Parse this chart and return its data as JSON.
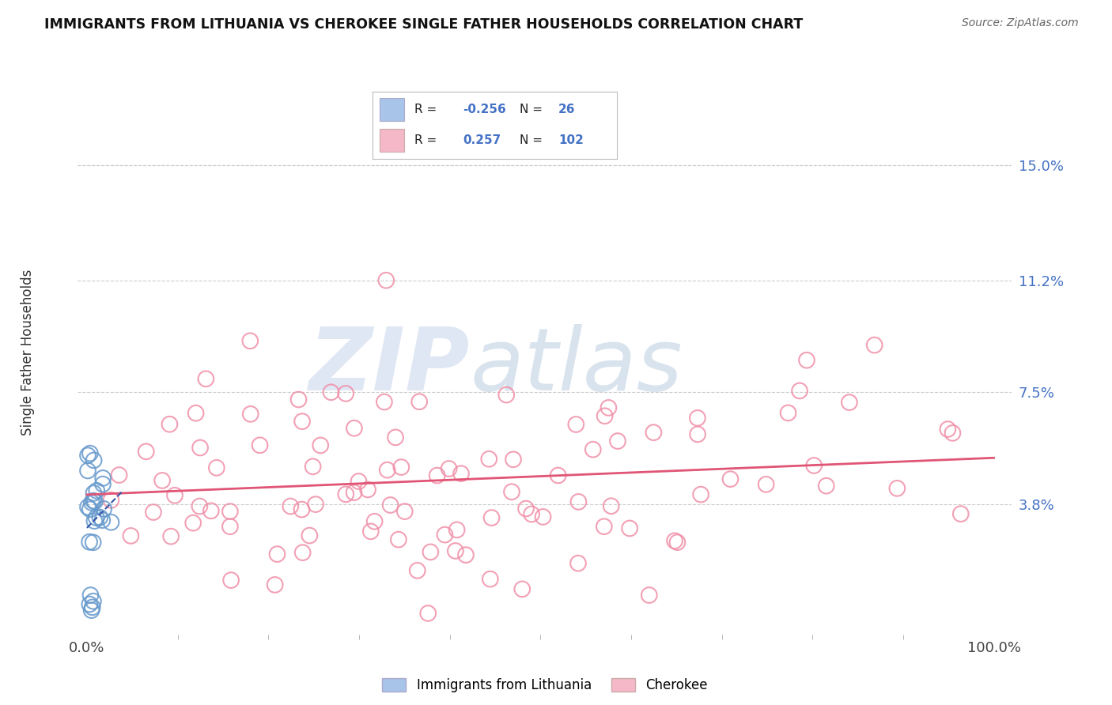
{
  "title": "IMMIGRANTS FROM LITHUANIA VS CHEROKEE SINGLE FATHER HOUSEHOLDS CORRELATION CHART",
  "source_text": "Source: ZipAtlas.com",
  "ylabel": "Single Father Households",
  "legend_entries": [
    {
      "label": "Immigrants from Lithuania",
      "R_val": "-0.256",
      "N_val": "26",
      "color": "#a8c4e8",
      "R_color": "#4472c4",
      "N_color": "#4472c4"
    },
    {
      "label": "Cherokee",
      "R_val": "0.257",
      "N_val": "102",
      "color": "#f4b8c8",
      "R_color": "#4472c4",
      "N_color": "#4472c4"
    }
  ],
  "y_tick_labels": [
    "3.8%",
    "7.5%",
    "11.2%",
    "15.0%"
  ],
  "y_tick_values": [
    0.038,
    0.075,
    0.112,
    0.15
  ],
  "y_tick_color": "#4472c4",
  "x_tick_labels": [
    "0.0%",
    "100.0%"
  ],
  "x_tick_values": [
    0.0,
    1.0
  ],
  "xlim": [
    -0.01,
    1.02
  ],
  "ylim": [
    -0.005,
    0.172
  ],
  "background_color": "#ffffff",
  "grid_color": "#cccccc",
  "scatter_blue_color": "#6699cc",
  "scatter_pink_color": "#f090a8",
  "trend_blue_color": "#3355aa",
  "trend_pink_color": "#e05575",
  "watermark": "ZIPatlas",
  "watermark_blue": "#b8c8e8",
  "watermark_atlas": "#90b0d0"
}
